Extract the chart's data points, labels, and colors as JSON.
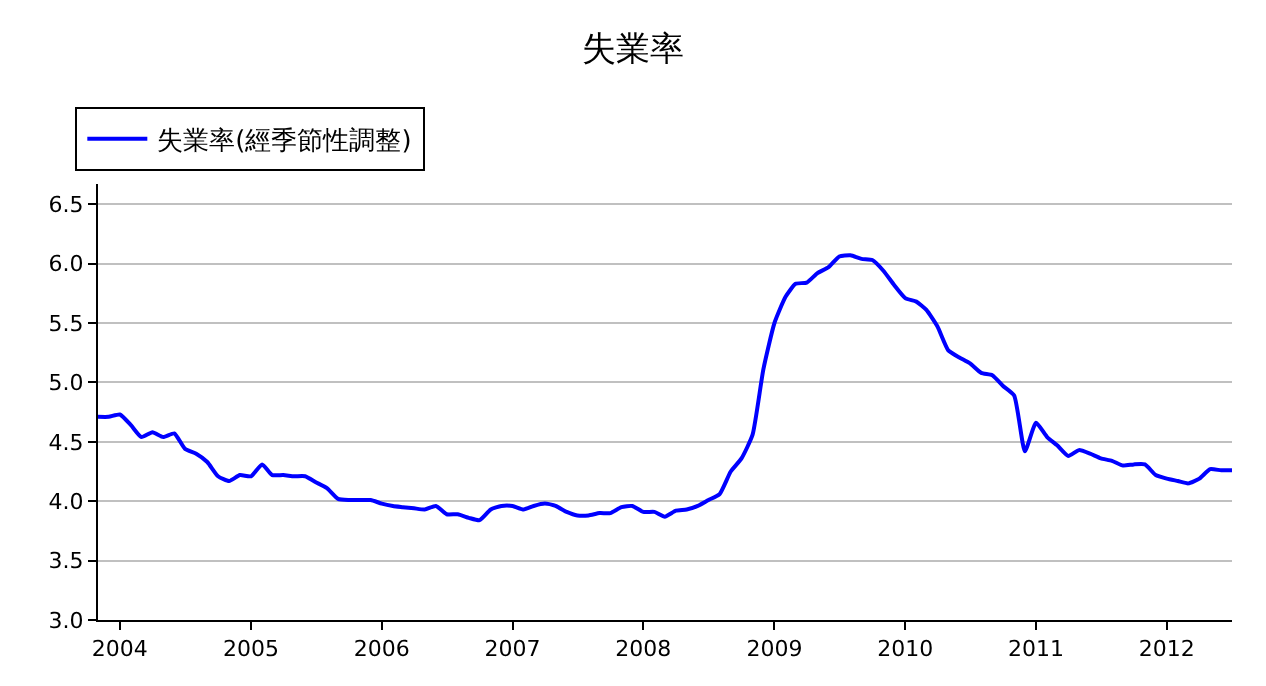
{
  "chart_data": {
    "type": "line",
    "title": "失業率",
    "legend": "top left",
    "grid": "y",
    "x": [
      "2003-11",
      "2003-12",
      "2004-01",
      "2004-02",
      "2004-03",
      "2004-04",
      "2004-05",
      "2004-06",
      "2004-07",
      "2004-08",
      "2004-09",
      "2004-10",
      "2004-11",
      "2004-12",
      "2005-01",
      "2005-02",
      "2005-03",
      "2005-04",
      "2005-05",
      "2005-06",
      "2005-07",
      "2005-08",
      "2005-09",
      "2005-10",
      "2005-11",
      "2005-12",
      "2006-01",
      "2006-02",
      "2006-03",
      "2006-04",
      "2006-05",
      "2006-06",
      "2006-07",
      "2006-08",
      "2006-09",
      "2006-10",
      "2006-11",
      "2006-12",
      "2007-01",
      "2007-02",
      "2007-03",
      "2007-04",
      "2007-05",
      "2007-06",
      "2007-07",
      "2007-08",
      "2007-09",
      "2007-10",
      "2007-11",
      "2007-12",
      "2008-01",
      "2008-02",
      "2008-03",
      "2008-04",
      "2008-05",
      "2008-06",
      "2008-07",
      "2008-08",
      "2008-09",
      "2008-10",
      "2008-11",
      "2008-12",
      "2009-01",
      "2009-02",
      "2009-03",
      "2009-04",
      "2009-05",
      "2009-06",
      "2009-07",
      "2009-08",
      "2009-09",
      "2009-10",
      "2009-11",
      "2009-12",
      "2010-01",
      "2010-02",
      "2010-03",
      "2010-04",
      "2010-05",
      "2010-06",
      "2010-07",
      "2010-08",
      "2010-09",
      "2010-10",
      "2010-11",
      "2010-12",
      "2011-01",
      "2011-02",
      "2011-03",
      "2011-04",
      "2011-05",
      "2011-06",
      "2011-07",
      "2011-08",
      "2011-09",
      "2011-10",
      "2011-11",
      "2011-12",
      "2012-01",
      "2012-02",
      "2012-03",
      "2012-04",
      "2012-05",
      "2012-06",
      "2012-07"
    ],
    "series": [
      {
        "name": "失業率(經季節性調整)",
        "color": "#0000ff",
        "values": [
          4.71,
          4.71,
          4.73,
          4.64,
          4.54,
          4.58,
          4.54,
          4.57,
          4.44,
          4.4,
          4.33,
          4.21,
          4.17,
          4.22,
          4.21,
          4.31,
          4.22,
          4.22,
          4.21,
          4.21,
          4.16,
          4.11,
          4.02,
          4.01,
          4.01,
          4.01,
          3.98,
          3.96,
          3.95,
          3.94,
          3.93,
          3.96,
          3.89,
          3.89,
          3.86,
          3.84,
          3.93,
          3.96,
          3.96,
          3.93,
          3.96,
          3.98,
          3.96,
          3.91,
          3.88,
          3.88,
          3.9,
          3.9,
          3.95,
          3.96,
          3.91,
          3.91,
          3.87,
          3.92,
          3.93,
          3.96,
          4.01,
          4.06,
          4.25,
          4.36,
          4.56,
          5.11,
          5.5,
          5.72,
          5.83,
          5.84,
          5.92,
          5.97,
          6.06,
          6.07,
          6.04,
          6.03,
          5.94,
          5.82,
          5.71,
          5.68,
          5.61,
          5.47,
          5.27,
          5.21,
          5.16,
          5.08,
          5.06,
          4.97,
          4.89,
          4.42,
          4.66,
          4.54,
          4.47,
          4.38,
          4.43,
          4.4,
          4.36,
          4.34,
          4.3,
          4.31,
          4.31,
          4.22,
          4.19,
          4.17,
          4.15,
          4.19,
          4.27,
          4.26,
          4.26
        ]
      }
    ],
    "xlim": [
      "2003-11",
      "2012-07"
    ],
    "xticks": [
      {
        "value": "2004-01",
        "label": "2004"
      },
      {
        "value": "2005-01",
        "label": "2005"
      },
      {
        "value": "2006-01",
        "label": "2006"
      },
      {
        "value": "2007-01",
        "label": "2007"
      },
      {
        "value": "2008-01",
        "label": "2008"
      },
      {
        "value": "2009-01",
        "label": "2009"
      },
      {
        "value": "2010-01",
        "label": "2010"
      },
      {
        "value": "2011-01",
        "label": "2011"
      },
      {
        "value": "2012-01",
        "label": "2012"
      }
    ],
    "ylim": [
      3.0,
      6.67
    ],
    "yticks": [
      {
        "value": 3.0,
        "label": "3.0"
      },
      {
        "value": 3.5,
        "label": "3.5"
      },
      {
        "value": 4.0,
        "label": "4.0"
      },
      {
        "value": 4.5,
        "label": "4.5"
      },
      {
        "value": 5.0,
        "label": "5.0"
      },
      {
        "value": 5.5,
        "label": "5.5"
      },
      {
        "value": 6.0,
        "label": "6.0"
      },
      {
        "value": 6.5,
        "label": "6.5"
      }
    ]
  }
}
